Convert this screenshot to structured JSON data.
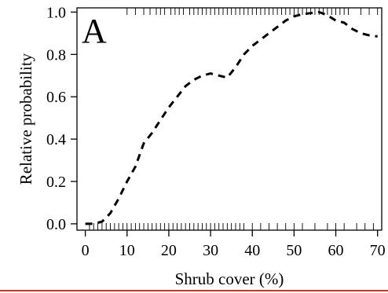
{
  "chart_data": {
    "type": "line",
    "panel_label": "A",
    "title": "",
    "xlabel": "Shrub cover (%)",
    "ylabel": "Relative probability",
    "xlim": [
      -2,
      71
    ],
    "ylim": [
      -0.03,
      1.02
    ],
    "xticks": [
      0,
      10,
      20,
      30,
      40,
      50,
      60,
      70
    ],
    "yticks": [
      0.0,
      0.2,
      0.4,
      0.6,
      0.8,
      1.0
    ],
    "ytick_labels": [
      "0.0",
      "0.2",
      "0.4",
      "0.6",
      "0.8",
      "1.0"
    ],
    "grid": false,
    "series": [
      {
        "style": "dashed",
        "x": [
          0,
          2,
          4,
          6,
          8,
          10,
          12,
          14,
          16,
          18,
          20,
          22,
          24,
          26,
          28,
          30,
          32,
          34,
          36,
          38,
          40,
          42,
          44,
          46,
          48,
          50,
          52,
          54,
          56,
          58,
          60,
          62,
          64,
          66,
          68,
          70
        ],
        "y": [
          0.0,
          0.0,
          0.01,
          0.05,
          0.12,
          0.2,
          0.27,
          0.38,
          0.43,
          0.49,
          0.55,
          0.6,
          0.65,
          0.68,
          0.7,
          0.71,
          0.7,
          0.69,
          0.74,
          0.8,
          0.84,
          0.87,
          0.9,
          0.93,
          0.96,
          0.98,
          0.99,
          0.995,
          1.0,
          0.985,
          0.96,
          0.95,
          0.92,
          0.9,
          0.89,
          0.885
        ]
      }
    ],
    "rug_top": [
      10,
      12,
      14,
      15.5,
      17,
      18,
      19,
      20.5,
      21.5,
      22.5,
      23.5,
      25,
      26,
      27,
      28,
      29,
      30,
      31,
      32,
      33,
      34,
      35,
      36,
      37,
      38,
      39,
      40,
      41,
      42,
      43,
      44,
      45,
      46,
      47,
      48,
      49,
      50,
      51,
      52,
      53,
      54,
      55,
      56,
      57,
      58,
      59,
      60,
      61,
      62,
      63,
      66,
      68,
      70
    ],
    "rug_bottom": [
      1,
      2,
      3,
      4,
      5,
      6,
      7,
      8,
      9,
      10,
      11,
      12,
      13,
      14,
      15,
      16,
      17,
      18,
      19,
      20,
      21,
      22,
      23,
      24,
      25,
      26,
      27,
      28,
      29,
      30,
      31,
      32,
      33,
      34,
      35,
      36,
      37,
      38,
      40,
      42,
      44,
      46,
      48,
      50,
      52,
      55,
      58,
      60,
      62,
      65,
      67,
      69
    ]
  }
}
